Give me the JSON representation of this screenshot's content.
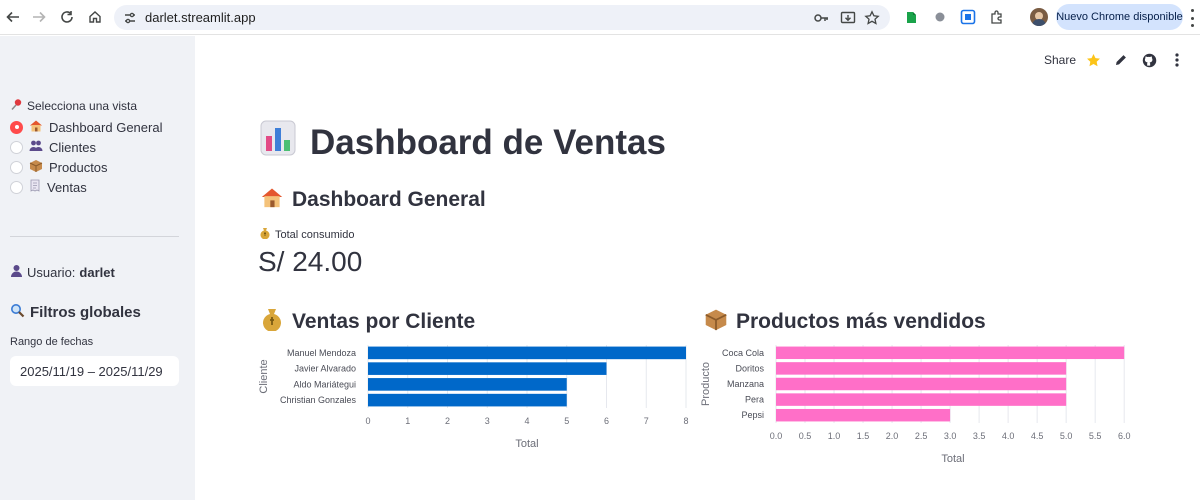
{
  "browser": {
    "url": "darlet.streamlit.app",
    "update_button": "Nuevo Chrome disponible"
  },
  "sidebar": {
    "view_caption": "Selecciona una vista",
    "views": [
      {
        "label": "Dashboard General",
        "icon": "house-icon",
        "selected": true
      },
      {
        "label": "Clientes",
        "icon": "people-icon",
        "selected": false
      },
      {
        "label": "Productos",
        "icon": "package-icon",
        "selected": false
      },
      {
        "label": "Ventas",
        "icon": "receipt-icon",
        "selected": false
      }
    ],
    "user_label": "Usuario:",
    "user_name": "darlet",
    "filters_title": "Filtros globales",
    "date_range_label": "Rango de fechas",
    "date_range_value": "2025/11/19 – 2025/11/29"
  },
  "toolbar": {
    "share_label": "Share"
  },
  "main": {
    "title": "Dashboard de Ventas",
    "section_title": "Dashboard General",
    "metric_label": "Total consumido",
    "metric_value": "S/ 24.00",
    "clients_chart_title": "Ventas por Cliente",
    "products_chart_title": "Productos más vendidos"
  },
  "colors": {
    "accent": "#ff4b4b",
    "sidebar_bg": "#f0f2f6",
    "bar_clients": "#0068c9",
    "bar_products": "#ff6fc8"
  },
  "chart_data": [
    {
      "type": "bar",
      "orientation": "horizontal",
      "categories": [
        "Manuel Mendoza",
        "Javier Alvarado",
        "Aldo Mariátegui",
        "Christian Gonzales"
      ],
      "values": [
        8,
        6,
        5,
        5
      ],
      "xlabel": "Total",
      "ylabel": "Cliente",
      "xlim": [
        0,
        8
      ],
      "xticks": [
        "0",
        "1",
        "2",
        "3",
        "4",
        "5",
        "6",
        "7",
        "8"
      ],
      "grid": true
    },
    {
      "type": "bar",
      "orientation": "horizontal",
      "categories": [
        "Coca Cola",
        "Doritos",
        "Manzana",
        "Pera",
        "Pepsi"
      ],
      "values": [
        6,
        5,
        5,
        5,
        3
      ],
      "xlabel": "Total",
      "ylabel": "Producto",
      "xlim": [
        0,
        6.1
      ],
      "xticks": [
        "0.0",
        "0.5",
        "1.0",
        "1.5",
        "2.0",
        "2.5",
        "3.0",
        "3.5",
        "4.0",
        "4.5",
        "5.0",
        "5.5",
        "6.0"
      ],
      "grid": true
    }
  ]
}
